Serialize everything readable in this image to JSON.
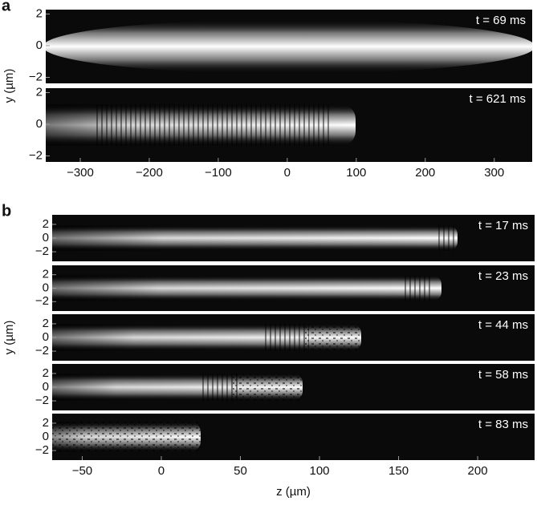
{
  "chart_data": [
    {
      "type": "image",
      "panel_label": "a",
      "y_label": "y (µm)",
      "annotation": "t = 69 ms",
      "xlim": [
        -350,
        355
      ],
      "ylim": [
        -2.38,
        2.28
      ],
      "yticks": [
        {
          "value": -2,
          "label": "−2"
        },
        0,
        2
      ]
    },
    {
      "type": "image",
      "annotation": "t = 621 ms",
      "xlim": [
        -350,
        355
      ],
      "ylim": [
        -2.38,
        2.28
      ],
      "yticks": [
        {
          "value": -2,
          "label": "−2"
        },
        0,
        2
      ],
      "xticks": [
        {
          "value": -300,
          "label": "−300"
        },
        {
          "value": -200,
          "label": "−200"
        },
        {
          "value": -100,
          "label": "−100"
        },
        0,
        100,
        200,
        300
      ]
    },
    {
      "type": "image",
      "panel_label": "b",
      "y_label": "y (µm)",
      "annotation": "t = 17 ms",
      "xlim": [
        -69,
        236
      ],
      "ylim": [
        -3.4,
        3.4
      ],
      "yticks": [
        {
          "value": -2,
          "label": "−2"
        },
        0,
        2
      ]
    },
    {
      "type": "image",
      "annotation": "t = 23 ms",
      "xlim": [
        -69,
        236
      ],
      "ylim": [
        -3.4,
        3.4
      ],
      "yticks": [
        {
          "value": -2,
          "label": "−2"
        },
        0,
        2
      ]
    },
    {
      "type": "image",
      "annotation": "t = 44 ms",
      "xlim": [
        -69,
        236
      ],
      "ylim": [
        -3.4,
        3.4
      ],
      "yticks": [
        {
          "value": -2,
          "label": "−2"
        },
        0,
        2
      ]
    },
    {
      "type": "image",
      "annotation": "t = 58 ms",
      "xlim": [
        -69,
        236
      ],
      "ylim": [
        -3.4,
        3.4
      ],
      "yticks": [
        {
          "value": -2,
          "label": "−2"
        },
        0,
        2
      ]
    },
    {
      "type": "image",
      "annotation": "t = 83 ms",
      "x_label": "z (µm)",
      "xlim": [
        -69,
        236
      ],
      "ylim": [
        -3.4,
        3.4
      ],
      "yticks": [
        {
          "value": -2,
          "label": "−2"
        },
        0,
        2
      ],
      "xticks": [
        {
          "value": -50,
          "label": "−50"
        },
        0,
        50,
        100,
        150,
        200
      ]
    }
  ]
}
